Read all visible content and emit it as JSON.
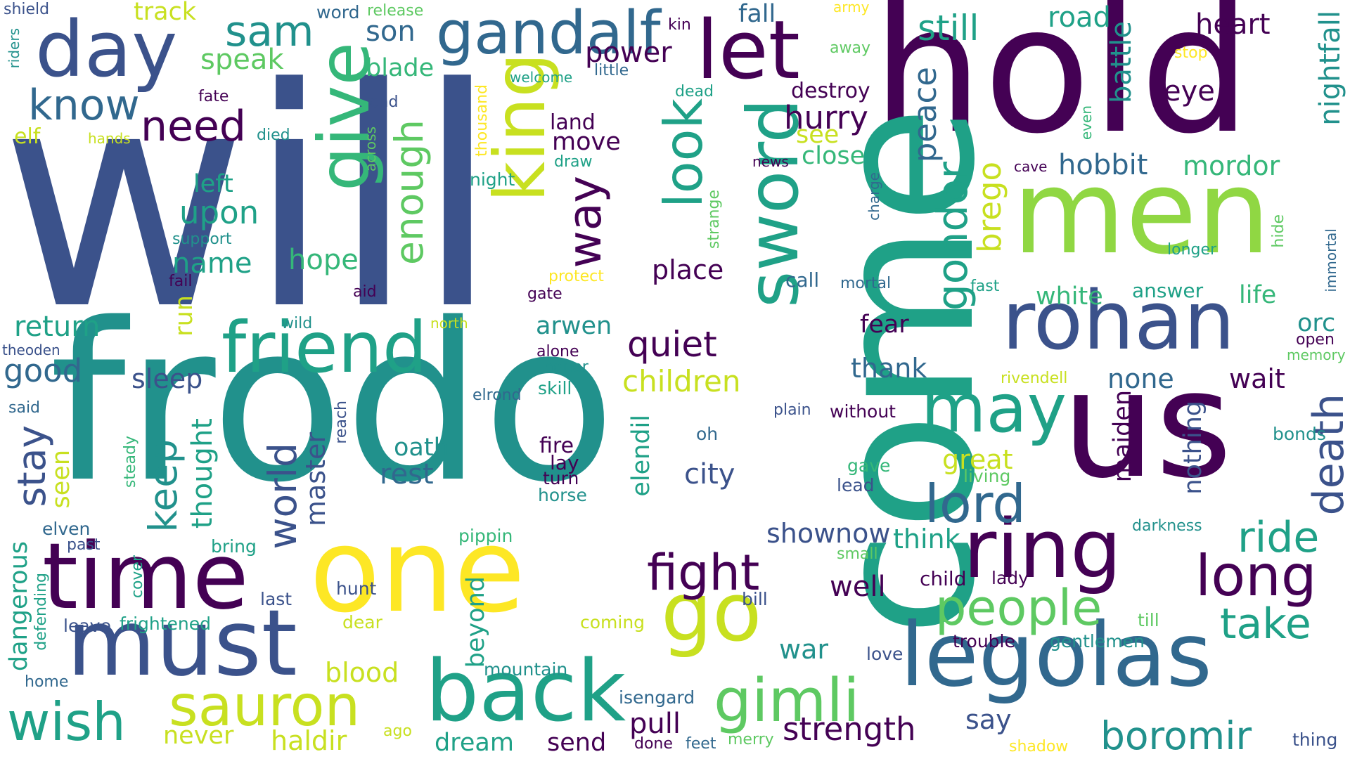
{
  "palette": {
    "background": "#ffffff",
    "dark_purple": "#440154",
    "indigo": "#3b528b",
    "blue": "#31688e",
    "teal": "#21918c",
    "green_teal": "#1fa187",
    "green": "#35b779",
    "light_green": "#5ec962",
    "lime": "#90d743",
    "yellow_green": "#c8e020",
    "yellow": "#fde725"
  },
  "words": [
    "will",
    "hold",
    "frodo",
    "come",
    "us",
    "men",
    "one",
    "must",
    "time",
    "back",
    "legolas",
    "ring",
    "rohan",
    "go",
    "day",
    "gandalf",
    "king",
    "let",
    "sword",
    "give",
    "friend",
    "may",
    "lord",
    "gimli",
    "sauron",
    "long",
    "death",
    "fight",
    "people",
    "boromir",
    "wish",
    "know",
    "need",
    "sam",
    "still",
    "road",
    "heart",
    "son",
    "power",
    "speak",
    "look",
    "enough",
    "way",
    "gondor",
    "brego",
    "battle",
    "eye",
    "nightfall",
    "hobbit",
    "mordor",
    "close",
    "hurry",
    "see",
    "destroy",
    "peace",
    "move",
    "land",
    "track",
    "word",
    "release",
    "kin",
    "fall",
    "army",
    "away",
    "stop",
    "shield",
    "riders",
    "elf",
    "hands",
    "died",
    "end",
    "fate",
    "blade",
    "welcome",
    "little",
    "dead",
    "news",
    "cave",
    "charge",
    "even",
    "upon",
    "left",
    "name",
    "hope",
    "place",
    "support",
    "fail",
    "protect",
    "aid",
    "gate",
    "call",
    "mortal",
    "fast",
    "white",
    "answer",
    "life",
    "longer",
    "hide",
    "open",
    "memory",
    "immortal",
    "return",
    "wild",
    "north",
    "arwen",
    "fear",
    "orc",
    "theoden",
    "good",
    "sleep",
    "alone",
    "honor",
    "quiet",
    "children",
    "thank",
    "rivendell",
    "none",
    "wait",
    "said",
    "skill",
    "elrond",
    "plain",
    "without",
    "stay",
    "keep",
    "seen",
    "thought",
    "world",
    "master",
    "reach",
    "steady",
    "oath",
    "rest",
    "fire",
    "lay",
    "turn",
    "horse",
    "city",
    "elendil",
    "oh",
    "bonds",
    "maiden",
    "nothing",
    "great",
    "living",
    "gave",
    "lead",
    "elven",
    "dangerous",
    "past",
    "bring",
    "cover",
    "hunt",
    "last",
    "beyond",
    "pippin",
    "show",
    "now",
    "think",
    "small",
    "ride",
    "take",
    "leave",
    "frightened",
    "defending",
    "dear",
    "coming",
    "well",
    "child",
    "lady",
    "bill",
    "darkness",
    "war",
    "love",
    "trouble",
    "gentlemen",
    "till",
    "home",
    "blood",
    "mountain",
    "isengard",
    "pull",
    "strength",
    "say",
    "haldir",
    "ago",
    "dream",
    "send",
    "done",
    "feet",
    "merry",
    "never",
    "shadow",
    "thing",
    "across",
    "draw",
    "night",
    "thousand",
    "strange",
    "run",
    "left"
  ]
}
